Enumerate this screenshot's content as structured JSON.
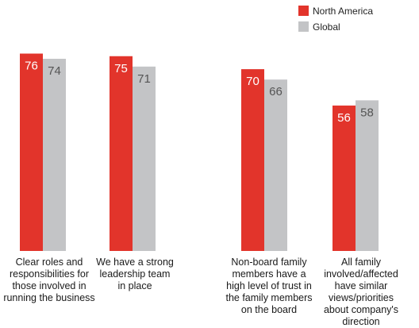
{
  "chart_data": {
    "type": "bar",
    "categories": [
      "Clear roles and responsibilities for those involved in running the business",
      "We have a strong leadership team in place",
      "Non-board family members have a high level of trust in the family members on the board",
      "All family involved/affected have similar views/priorities about company's direction"
    ],
    "category_lines": [
      [
        "Clear roles and",
        "responsibilities for",
        "those involved in",
        "running the business"
      ],
      [
        "We have a strong",
        "leadership team",
        "in place"
      ],
      [
        "Non-board family",
        "members have a",
        "high level of trust in",
        "the family members",
        "on the board"
      ],
      [
        "All family",
        "involved/affected",
        "have similar",
        "views/priorities",
        "about company's",
        "direction"
      ]
    ],
    "series": [
      {
        "name": "North America",
        "color": "#e2342b",
        "values": [
          76,
          75,
          70,
          56
        ]
      },
      {
        "name": "Global",
        "color": "#c3c4c6",
        "values": [
          74,
          71,
          66,
          58
        ]
      }
    ],
    "ylim": [
      0,
      100
    ],
    "legend_position": "top-right",
    "grid": false,
    "data_labels": true
  }
}
